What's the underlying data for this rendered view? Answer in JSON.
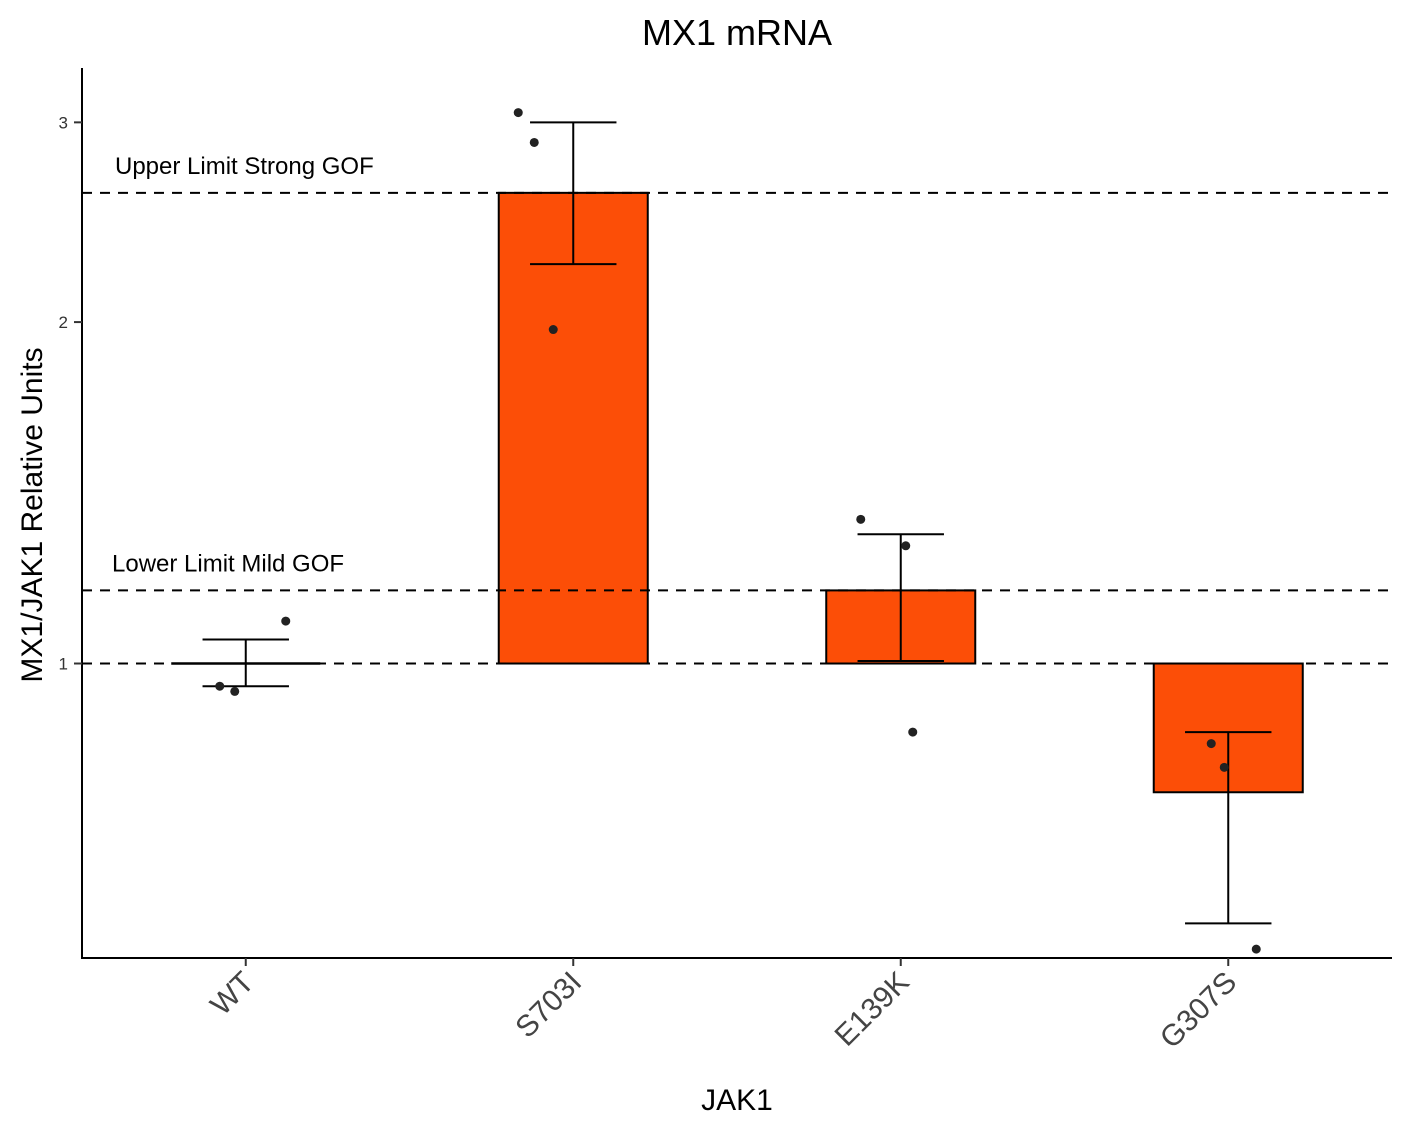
{
  "chart_data": {
    "type": "bar",
    "title": "MX1 mRNA",
    "xlabel": "JAK1",
    "ylabel": "MX1/JAK1 Relative Units",
    "y_scale": "log",
    "ylim": [
      0.55,
      3.35
    ],
    "y_ticks": [
      1,
      2,
      3
    ],
    "y_tick_labels": [
      "1",
      "2",
      "3"
    ],
    "baseline": 1,
    "bar_color": "#FC4E07",
    "categories": [
      "WT",
      "S703I",
      "E139K",
      "G307S"
    ],
    "values": [
      1.0,
      2.6,
      1.16,
      0.77
    ],
    "error_low": [
      0.955,
      2.25,
      1.005,
      0.59
    ],
    "error_high": [
      1.05,
      3.0,
      1.3,
      0.87
    ],
    "points": [
      [
        0.955,
        0.945,
        1.09
      ],
      [
        3.06,
        2.88,
        1.97
      ],
      [
        1.34,
        1.27,
        0.87
      ],
      [
        0.85,
        0.81,
        0.56
      ]
    ],
    "reference_lines": [
      {
        "y": 1.0,
        "label": ""
      },
      {
        "y": 1.16,
        "label": "Lower Limit Mild GOF"
      },
      {
        "y": 2.6,
        "label": "Upper Limit Strong GOF"
      }
    ],
    "grid": false,
    "legend": "none"
  }
}
